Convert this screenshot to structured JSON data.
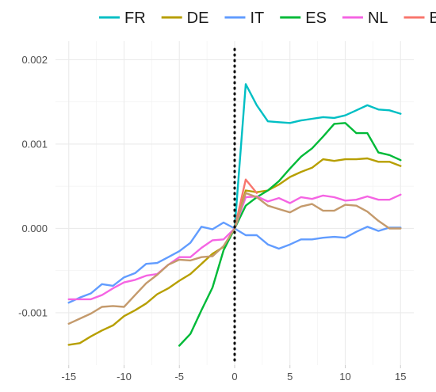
{
  "chart_data": {
    "type": "line",
    "title": "",
    "xlabel": "",
    "ylabel": "",
    "xlim": [
      -16.2,
      16.2
    ],
    "ylim": [
      -0.00162,
      0.00222
    ],
    "x_ticks": [
      -15,
      -10,
      -5,
      0,
      5,
      10,
      15
    ],
    "x_tick_labels": [
      "-15",
      "-10",
      "-5",
      "0",
      "5",
      "10",
      "15"
    ],
    "y_ticks": [
      -0.001,
      0.0,
      0.001,
      0.002
    ],
    "y_tick_labels": [
      "-0.001",
      "0.000",
      "0.001",
      "0.002"
    ],
    "grid": true,
    "legend": "top",
    "vertical_reference_line": {
      "x": 0,
      "style": "dotted",
      "color": "#000000"
    },
    "series": [
      {
        "name": "FR",
        "color": "#00BFC4",
        "x": [
          0,
          1,
          2,
          3,
          4,
          5,
          6,
          7,
          8,
          9,
          10,
          11,
          12,
          13,
          14,
          15
        ],
        "values": [
          0.0,
          0.00171,
          0.00146,
          0.00127,
          0.00126,
          0.00125,
          0.00128,
          0.0013,
          0.00132,
          0.00131,
          0.00134,
          0.0014,
          0.00146,
          0.00141,
          0.0014,
          0.00136
        ]
      },
      {
        "name": "DE",
        "color": "#B79F00",
        "x": [
          -15,
          -14,
          -13,
          -12,
          -11,
          -10,
          -9,
          -8,
          -7,
          -6,
          -5,
          -4,
          -3,
          -2,
          -1,
          0,
          1,
          2,
          3,
          4,
          5,
          6,
          7,
          8,
          9,
          10,
          11,
          12,
          13,
          14,
          15
        ],
        "values": [
          -0.00138,
          -0.00136,
          -0.00128,
          -0.00121,
          -0.00115,
          -0.00104,
          -0.00097,
          -0.00089,
          -0.00078,
          -0.00071,
          -0.00062,
          -0.00054,
          -0.00042,
          -0.0003,
          -0.00022,
          0.0,
          0.00045,
          0.00043,
          0.00045,
          0.00052,
          0.00061,
          0.00067,
          0.00072,
          0.00082,
          0.0008,
          0.00082,
          0.00082,
          0.00083,
          0.00079,
          0.00079,
          0.00074
        ]
      },
      {
        "name": "IT",
        "color": "#619CFF",
        "x": [
          -15,
          -14,
          -13,
          -12,
          -11,
          -10,
          -9,
          -8,
          -7,
          -6,
          -5,
          -4,
          -3,
          -2,
          -1,
          0,
          1,
          2,
          3,
          4,
          5,
          6,
          7,
          8,
          9,
          10,
          11,
          12,
          13,
          14,
          15
        ],
        "values": [
          -0.00088,
          -0.00082,
          -0.00077,
          -0.00066,
          -0.00068,
          -0.00058,
          -0.00053,
          -0.00042,
          -0.00041,
          -0.00034,
          -0.00027,
          -0.00017,
          2e-05,
          -1e-05,
          7e-05,
          0.0,
          -8e-05,
          -8e-05,
          -0.00019,
          -0.00024,
          -0.00019,
          -0.00013,
          -0.00013,
          -0.00011,
          -0.0001,
          -0.00011,
          -4e-05,
          2e-05,
          -3e-05,
          1e-05,
          1e-05
        ]
      },
      {
        "name": "ES",
        "color": "#00BA38",
        "x": [
          -5,
          -4,
          -3,
          -2,
          -1,
          0,
          1,
          2,
          3,
          4,
          5,
          6,
          7,
          8,
          9,
          10,
          11,
          12,
          13,
          14,
          15
        ],
        "values": [
          -0.00139,
          -0.00125,
          -0.00097,
          -0.0007,
          -0.00026,
          0.0,
          0.00027,
          0.00037,
          0.00045,
          0.00056,
          0.00071,
          0.00085,
          0.00095,
          0.00109,
          0.00124,
          0.00125,
          0.00113,
          0.00113,
          0.0009,
          0.00087,
          0.00081
        ]
      },
      {
        "name": "NL",
        "color": "#F564E3",
        "x": [
          -15,
          -14,
          -13,
          -12,
          -11,
          -10,
          -9,
          -8,
          -7,
          -6,
          -5,
          -4,
          -3,
          -2,
          -1,
          0,
          1,
          2,
          3,
          4,
          5,
          6,
          7,
          8,
          9,
          10,
          11,
          12,
          13,
          14,
          15
        ],
        "values": [
          -0.00084,
          -0.00084,
          -0.00084,
          -0.00079,
          -0.00071,
          -0.00064,
          -0.00061,
          -0.00056,
          -0.00054,
          -0.00043,
          -0.00034,
          -0.00034,
          -0.00023,
          -0.00014,
          -0.00013,
          0.0,
          0.00037,
          0.00038,
          0.00032,
          0.00036,
          0.0003,
          0.00037,
          0.00035,
          0.00039,
          0.00037,
          0.00033,
          0.00034,
          0.00038,
          0.00034,
          0.00034,
          0.0004
        ]
      },
      {
        "name": "BE",
        "color": "#F8766D",
        "x": [
          0,
          1,
          2
        ],
        "values": [
          0.0,
          0.00058,
          0.00042
        ]
      },
      {
        "name": "",
        "color": "#C49A6C",
        "x": [
          -15,
          -14,
          -13,
          -12,
          -11,
          -10,
          -9,
          -8,
          -7,
          -6,
          -5,
          -4,
          -3,
          -2,
          -1,
          0,
          1,
          2,
          3,
          4,
          5,
          6,
          7,
          8,
          9,
          10,
          11,
          12,
          13,
          14,
          15
        ],
        "values": [
          -0.00113,
          -0.00107,
          -0.00101,
          -0.00093,
          -0.00092,
          -0.00093,
          -0.00079,
          -0.00065,
          -0.00055,
          -0.00043,
          -0.00037,
          -0.00038,
          -0.00034,
          -0.00033,
          -0.00021,
          0.0,
          0.00042,
          0.00037,
          0.00027,
          0.00023,
          0.00019,
          0.00026,
          0.00029,
          0.00021,
          0.00021,
          0.00028,
          0.00027,
          0.0002,
          9e-05,
          0.0,
          0.0
        ]
      }
    ]
  }
}
